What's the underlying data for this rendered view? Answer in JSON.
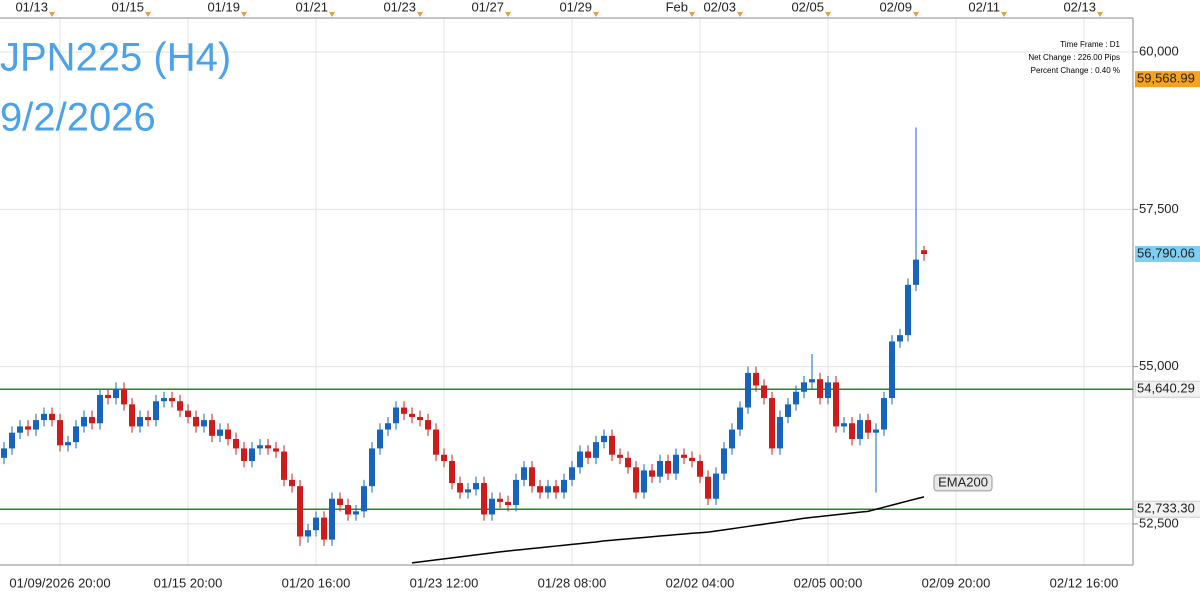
{
  "chart_data": {
    "type": "candlestick",
    "title": "JPN225 (H4)",
    "subtitle": "9/2/2026",
    "info": [
      "Time Frame : D1",
      "Net Change : 226.00 Pips",
      "Percent Change : 0.40 %"
    ],
    "categories": [
      null,
      null,
      null,
      null,
      null,
      null,
      null,
      "01/09/2026 20:00",
      null,
      null,
      null,
      null,
      null,
      null,
      null,
      null,
      null,
      null,
      null,
      null,
      null,
      null,
      null,
      "01/15 20:00",
      null,
      null,
      null,
      null,
      null,
      null,
      null,
      null,
      null,
      null,
      null,
      null,
      null,
      null,
      null,
      "01/20 16:00",
      null,
      null,
      null,
      null,
      null,
      null,
      null,
      null,
      null,
      null,
      null,
      null,
      null,
      null,
      null,
      "01/23 12:00",
      null,
      null,
      null,
      null,
      null,
      null,
      null,
      null,
      null,
      null,
      null,
      null,
      null,
      null,
      null,
      "01/28 08:00",
      null,
      null,
      null,
      null,
      null,
      null,
      null,
      null,
      null,
      null,
      null,
      null,
      null,
      null,
      null,
      "02/02 04:00",
      null,
      null,
      null,
      null,
      null,
      null,
      null,
      null,
      null,
      null,
      null,
      null,
      null,
      null,
      null,
      "02/05 00:00",
      null,
      null,
      null,
      null,
      null,
      null,
      null,
      null,
      null,
      null,
      null,
      null,
      null,
      null,
      null,
      "02/09 20:00",
      null,
      null,
      null,
      null,
      null,
      null,
      null,
      null,
      null,
      null,
      null,
      null,
      null,
      null,
      null,
      "02/12 16:00",
      null,
      null,
      null,
      null,
      null,
      null
    ],
    "top_categories": [
      null,
      null,
      null,
      null,
      null,
      null,
      "01/13",
      null,
      null,
      null,
      null,
      null,
      null,
      null,
      null,
      null,
      null,
      null,
      "01/15",
      null,
      null,
      null,
      null,
      null,
      null,
      null,
      null,
      null,
      null,
      null,
      "01/19",
      null,
      null,
      null,
      null,
      null,
      null,
      null,
      null,
      null,
      null,
      "01/21",
      null,
      null,
      null,
      null,
      null,
      null,
      null,
      null,
      null,
      null,
      "01/23",
      null,
      null,
      null,
      null,
      null,
      null,
      null,
      null,
      null,
      null,
      "01/27",
      null,
      null,
      null,
      null,
      null,
      null,
      null,
      null,
      null,
      null,
      "01/29",
      null,
      null,
      null,
      null,
      null,
      null,
      null,
      null,
      null,
      null,
      null,
      "Feb",
      null,
      null,
      null,
      null,
      null,
      "02/03",
      null,
      null,
      null,
      null,
      null,
      null,
      null,
      null,
      null,
      null,
      "02/05",
      null,
      null,
      null,
      null,
      null,
      null,
      null,
      null,
      null,
      null,
      "02/09",
      null,
      null,
      null,
      null,
      null,
      null,
      null,
      null,
      null,
      null,
      "02/11",
      null,
      null,
      null,
      null,
      null,
      null,
      null,
      null,
      null,
      null,
      null,
      "02/13",
      null,
      null,
      null,
      null
    ],
    "open": [
      53550,
      53700,
      53950,
      54050,
      54000,
      54150,
      54250,
      54150,
      53750,
      53800,
      54050,
      54200,
      54100,
      54550,
      54500,
      54650,
      54400,
      54050,
      54200,
      54150,
      54450,
      54500,
      54450,
      54300,
      54200,
      54050,
      54150,
      53900,
      54000,
      53850,
      53700,
      53500,
      53700,
      53750,
      53700,
      53650,
      53200,
      53100,
      52300,
      52400,
      52600,
      52250,
      52900,
      52800,
      52650,
      52700,
      53100,
      53700,
      54000,
      54100,
      54350,
      54250,
      54200,
      54150,
      54000,
      53600,
      53500,
      53150,
      53000,
      53050,
      53150,
      52650,
      52900,
      52850,
      52800,
      53200,
      53400,
      53100,
      53000,
      53100,
      53000,
      53200,
      53400,
      53650,
      53550,
      53800,
      53900,
      53600,
      53550,
      53400,
      53000,
      53350,
      53250,
      53500,
      53300,
      53600,
      53550,
      53500,
      53250,
      52900,
      53300,
      53700,
      54000,
      54350,
      54900,
      54700,
      54500,
      53700,
      54200,
      54400,
      54600,
      54750,
      54800,
      54500,
      54750,
      54050,
      54100,
      53850,
      54150,
      53950,
      54000,
      54500,
      55400,
      55500,
      56300,
      56850,
      null,
      null,
      null,
      null,
      null,
      null,
      null,
      null,
      null,
      null,
      null,
      null,
      null,
      null,
      null,
      null,
      null,
      null,
      null,
      null,
      null,
      null,
      null,
      null,
      null,
      null
    ],
    "high": [
      53800,
      54050,
      54150,
      54150,
      54250,
      54350,
      54350,
      54250,
      53900,
      54150,
      54300,
      54300,
      54650,
      54650,
      54750,
      54750,
      54500,
      54300,
      54300,
      54550,
      54600,
      54600,
      54550,
      54400,
      54300,
      54250,
      54250,
      54100,
      54100,
      53950,
      53800,
      53800,
      53850,
      53850,
      53800,
      53750,
      53300,
      53200,
      52500,
      52700,
      52700,
      53000,
      53000,
      52900,
      52800,
      53200,
      53800,
      54100,
      54200,
      54450,
      54450,
      54350,
      54300,
      54250,
      54100,
      53700,
      53600,
      53250,
      53150,
      53250,
      53250,
      53000,
      53000,
      52950,
      53300,
      53500,
      53500,
      53200,
      53200,
      53200,
      53300,
      53500,
      53750,
      53750,
      53900,
      54000,
      54000,
      53700,
      53650,
      53500,
      53450,
      53450,
      53600,
      53600,
      53700,
      53700,
      53650,
      53600,
      53350,
      53400,
      53800,
      54100,
      54450,
      55000,
      55000,
      54800,
      54600,
      54300,
      54500,
      54700,
      54850,
      55200,
      54900,
      54850,
      54850,
      54200,
      54200,
      54250,
      54250,
      54100,
      54600,
      55500,
      55600,
      56400,
      58800,
      56920,
      null,
      null,
      null,
      null,
      null,
      null,
      null,
      null,
      null,
      null,
      null,
      null,
      null,
      null,
      null,
      null,
      null,
      null,
      null,
      null,
      null,
      null,
      null,
      null,
      null,
      null
    ],
    "low": [
      53450,
      53600,
      53850,
      53900,
      53900,
      54050,
      54050,
      53650,
      53650,
      53700,
      53950,
      54000,
      54000,
      54400,
      54400,
      54300,
      53950,
      53950,
      54050,
      54050,
      54350,
      54350,
      54200,
      54100,
      53950,
      53950,
      53800,
      53800,
      53750,
      53600,
      53400,
      53400,
      53600,
      53600,
      53550,
      53100,
      53000,
      52150,
      52200,
      52300,
      52150,
      52150,
      52700,
      52550,
      52550,
      52600,
      53000,
      53600,
      53900,
      54000,
      54150,
      54100,
      54050,
      53900,
      53500,
      53400,
      53050,
      52900,
      52900,
      52950,
      52550,
      52550,
      52750,
      52700,
      52700,
      53100,
      53000,
      52900,
      52900,
      52900,
      52900,
      53100,
      53300,
      53450,
      53450,
      53700,
      53500,
      53450,
      53300,
      52900,
      52900,
      53150,
      53150,
      53200,
      53200,
      53450,
      53400,
      53150,
      52800,
      52800,
      53200,
      53600,
      53900,
      54250,
      54600,
      54400,
      53600,
      53600,
      54100,
      54300,
      54500,
      54650,
      54400,
      54400,
      53950,
      53950,
      53750,
      53750,
      53850,
      53000,
      53900,
      54400,
      55300,
      55400,
      56200,
      56680,
      null,
      null,
      null,
      null,
      null,
      null,
      null,
      null,
      null,
      null,
      null,
      null,
      null,
      null,
      null,
      null,
      null,
      null,
      null,
      null,
      null,
      null,
      null,
      null,
      null,
      null
    ],
    "close": [
      53700,
      53950,
      54050,
      54000,
      54150,
      54250,
      54150,
      53750,
      53800,
      54050,
      54200,
      54100,
      54550,
      54500,
      54650,
      54400,
      54050,
      54200,
      54150,
      54450,
      54500,
      54450,
      54300,
      54200,
      54050,
      54150,
      53900,
      54000,
      53850,
      53700,
      53500,
      53700,
      53750,
      53700,
      53650,
      53200,
      53100,
      52300,
      52400,
      52600,
      52250,
      52900,
      52800,
      52650,
      52700,
      53100,
      53700,
      54000,
      54100,
      54350,
      54250,
      54200,
      54150,
      54000,
      53600,
      53500,
      53150,
      53000,
      53050,
      53150,
      52650,
      52900,
      52850,
      52800,
      53200,
      53400,
      53100,
      53000,
      53100,
      53000,
      53200,
      53400,
      53650,
      53550,
      53800,
      53900,
      53600,
      53550,
      53400,
      53000,
      53350,
      53250,
      53500,
      53300,
      53600,
      53550,
      53500,
      53250,
      52900,
      53300,
      53700,
      54000,
      54350,
      54900,
      54700,
      54500,
      53700,
      54200,
      54400,
      54600,
      54750,
      54800,
      54500,
      54750,
      54050,
      54100,
      53850,
      54150,
      53950,
      54000,
      54500,
      55400,
      55500,
      56300,
      56700,
      56790,
      null,
      null,
      null,
      null,
      null,
      null,
      null,
      null,
      null,
      null,
      null,
      null,
      null,
      null,
      null,
      null,
      null,
      null,
      null,
      null,
      null,
      null,
      null,
      null,
      null,
      null
    ],
    "up_color": "#1565c0",
    "down_color": "#d11a1a",
    "series": [
      {
        "name": "EMA200",
        "color": "#000000",
        "values": [
          null,
          null,
          null,
          null,
          null,
          null,
          null,
          null,
          null,
          null,
          null,
          null,
          null,
          null,
          null,
          null,
          null,
          null,
          null,
          null,
          null,
          null,
          null,
          null,
          null,
          null,
          null,
          null,
          null,
          null,
          null,
          null,
          null,
          null,
          null,
          null,
          null,
          null,
          null,
          null,
          null,
          null,
          null,
          null,
          null,
          null,
          null,
          null,
          null,
          null,
          null,
          51880,
          51896,
          51912,
          51928,
          51944,
          51960,
          51976,
          51992,
          52008,
          52024,
          52040,
          52056,
          52070,
          52083,
          52096,
          52109,
          52122,
          52135,
          52148,
          52161,
          52174,
          52187,
          52200,
          52213,
          52230,
          52241,
          52252,
          52263,
          52274,
          52285,
          52296,
          52307,
          52318,
          52329,
          52340,
          52351,
          52360,
          52370,
          52388,
          52406,
          52424,
          52442,
          52460,
          52478,
          52496,
          52514,
          52532,
          52550,
          52570,
          52590,
          52604,
          52618,
          52632,
          52646,
          52660,
          52674,
          52688,
          52700,
          52733,
          52766,
          52799,
          52832,
          52865,
          52898,
          52930,
          null,
          null,
          null,
          null,
          null,
          null,
          null,
          null,
          null,
          null,
          null,
          null,
          null,
          null,
          null,
          null,
          null,
          null,
          null,
          null,
          null,
          null,
          null,
          null,
          null,
          null
        ]
      }
    ],
    "ylim": [
      51847,
      60541
    ],
    "yticks": [
      {
        "value": 52500,
        "label": "52,500"
      },
      {
        "value": 55000,
        "label": "55,000"
      },
      {
        "value": 57500,
        "label": "57,500"
      },
      {
        "value": 60000,
        "label": "60,000"
      }
    ],
    "grid": true,
    "levels": [
      {
        "value": 54640.29,
        "label": "54,640.29",
        "color": "#1e8c1e"
      },
      {
        "value": 52733.3,
        "label": "52,733.30",
        "color": "#1e8c1e"
      }
    ],
    "price_tags": [
      {
        "value": 59568.99,
        "label": "59,568.99",
        "color": "#f5a21e"
      },
      {
        "value": 56790.06,
        "label": "56,790.06",
        "color": "#7fcff5"
      }
    ]
  }
}
